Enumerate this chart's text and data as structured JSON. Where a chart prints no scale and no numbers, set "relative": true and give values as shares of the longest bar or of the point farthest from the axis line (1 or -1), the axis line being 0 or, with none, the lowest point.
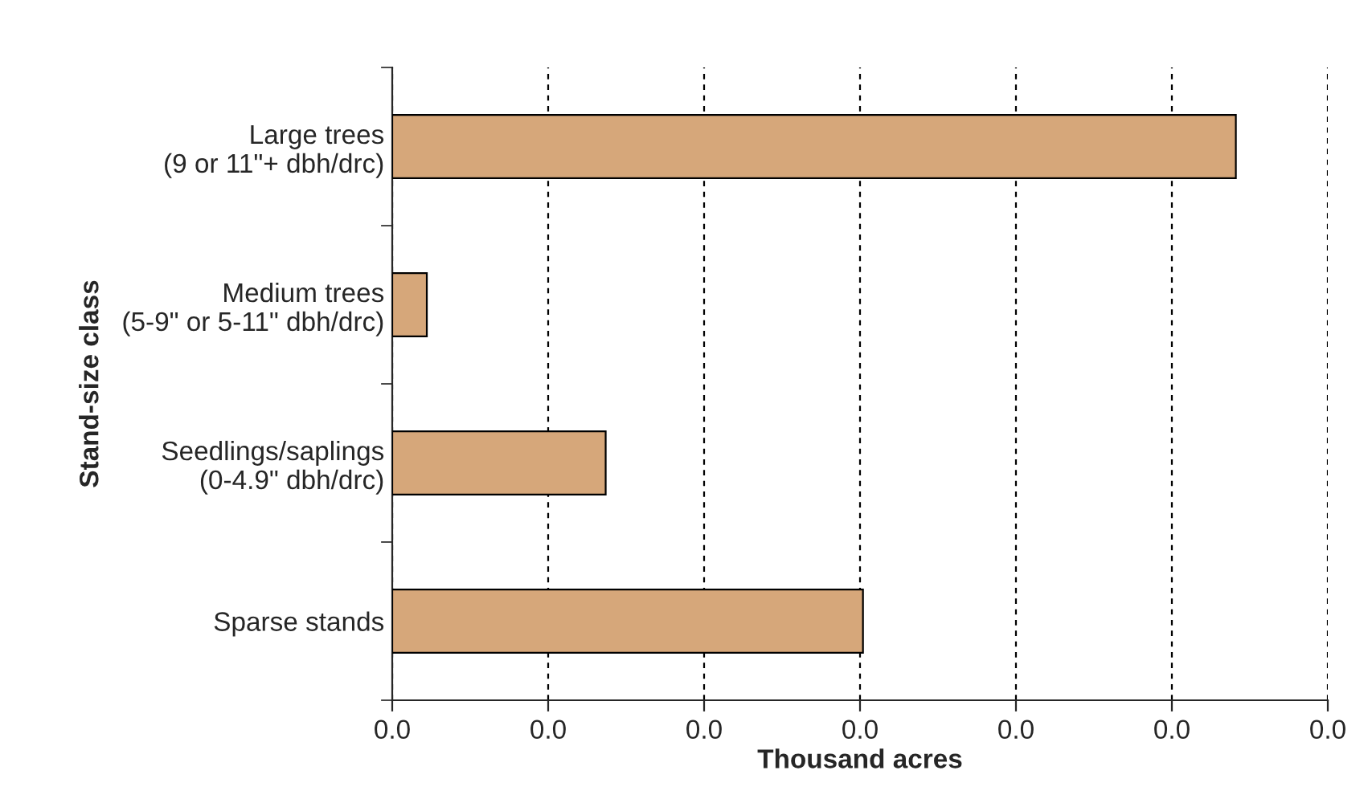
{
  "chart_data": {
    "type": "bar",
    "orientation": "horizontal",
    "relative": true,
    "xlabel": "Thousand acres",
    "ylabel": "Stand-size class",
    "categories": [
      "Large trees\n(9 or 11\"+ dbh/drc)",
      "Medium trees\n(5-9\" or 5-11\" dbh/drc)",
      "Seedlings/saplings\n(0-4.9\" dbh/drc)",
      "Sparse stands"
    ],
    "values": [
      1,
      0.041,
      0.253,
      0.558
    ],
    "color": "#d6a77a",
    "annotations": [
      "0.0",
      "0.0",
      "0.0",
      "0.0",
      "0.0",
      "0.0",
      "0.0"
    ],
    "grid": "x"
  }
}
